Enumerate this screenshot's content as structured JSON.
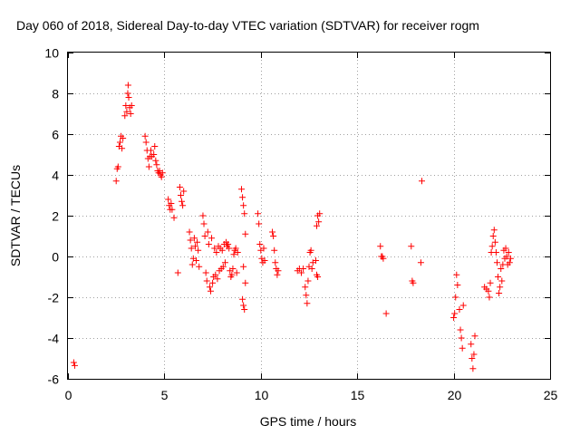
{
  "colors": {
    "marker": "#ff0000",
    "axis": "#000000",
    "grid": "#a0a0a0",
    "background": "#ffffff"
  },
  "chart_data": {
    "type": "scatter",
    "title": "Day 060 of 2018, Sidereal Day-to-day VTEC variation (SDTVAR) for receiver rogm",
    "xlabel": "GPS time / hours",
    "ylabel": "SDTVAR / TECUs",
    "xlim": [
      0,
      25
    ],
    "ylim": [
      -6,
      10
    ],
    "xticks": [
      0,
      5,
      10,
      15,
      20,
      25
    ],
    "yticks": [
      -6,
      -4,
      -2,
      0,
      2,
      4,
      6,
      8,
      10
    ],
    "grid": true,
    "marker": "+",
    "series": [
      {
        "name": "SDTVAR",
        "points": [
          [
            0.3,
            -5.2
          ],
          [
            0.35,
            -5.35
          ],
          [
            2.5,
            3.7
          ],
          [
            2.55,
            4.3
          ],
          [
            2.6,
            4.4
          ],
          [
            2.65,
            5.4
          ],
          [
            2.7,
            5.6
          ],
          [
            2.75,
            5.9
          ],
          [
            2.8,
            5.3
          ],
          [
            2.85,
            5.8
          ],
          [
            2.95,
            6.9
          ],
          [
            3.0,
            7.4
          ],
          [
            3.05,
            7.1
          ],
          [
            3.1,
            8.0
          ],
          [
            3.12,
            8.4
          ],
          [
            3.15,
            7.8
          ],
          [
            3.2,
            7.3
          ],
          [
            3.25,
            7.0
          ],
          [
            3.3,
            7.4
          ],
          [
            4.0,
            5.9
          ],
          [
            4.05,
            5.6
          ],
          [
            4.1,
            5.2
          ],
          [
            4.15,
            4.8
          ],
          [
            4.2,
            4.4
          ],
          [
            4.25,
            4.9
          ],
          [
            4.3,
            5.2
          ],
          [
            4.35,
            4.9
          ],
          [
            4.45,
            5.0
          ],
          [
            4.5,
            5.4
          ],
          [
            4.55,
            4.7
          ],
          [
            4.6,
            4.5
          ],
          [
            4.65,
            4.2
          ],
          [
            4.7,
            4.1
          ],
          [
            4.75,
            4.2
          ],
          [
            4.8,
            4.0
          ],
          [
            4.85,
            3.9
          ],
          [
            4.9,
            4.1
          ],
          [
            5.2,
            2.8
          ],
          [
            5.25,
            2.5
          ],
          [
            5.3,
            2.3
          ],
          [
            5.35,
            2.6
          ],
          [
            5.4,
            2.3
          ],
          [
            5.5,
            1.9
          ],
          [
            5.8,
            3.4
          ],
          [
            5.85,
            3.0
          ],
          [
            5.9,
            2.7
          ],
          [
            5.95,
            2.5
          ],
          [
            6.0,
            3.2
          ],
          [
            5.7,
            -0.8
          ],
          [
            6.3,
            1.2
          ],
          [
            6.35,
            0.8
          ],
          [
            6.4,
            0.4
          ],
          [
            6.45,
            -0.4
          ],
          [
            6.5,
            -0.1
          ],
          [
            6.55,
            0.9
          ],
          [
            6.6,
            0.5
          ],
          [
            6.65,
            -0.2
          ],
          [
            6.7,
            0.7
          ],
          [
            6.75,
            0.3
          ],
          [
            6.8,
            -0.5
          ],
          [
            7.0,
            2.0
          ],
          [
            7.05,
            1.6
          ],
          [
            7.1,
            1.0
          ],
          [
            7.15,
            -0.8
          ],
          [
            7.2,
            -1.2
          ],
          [
            7.25,
            1.2
          ],
          [
            7.3,
            0.6
          ],
          [
            7.35,
            -1.5
          ],
          [
            7.4,
            -1.7
          ],
          [
            7.45,
            0.9
          ],
          [
            7.5,
            -1.3
          ],
          [
            7.55,
            -1.0
          ],
          [
            7.6,
            0.4
          ],
          [
            7.65,
            -0.9
          ],
          [
            7.7,
            0.2
          ],
          [
            7.75,
            -1.1
          ],
          [
            7.8,
            0.5
          ],
          [
            7.85,
            -0.7
          ],
          [
            7.9,
            0.4
          ],
          [
            7.95,
            -0.6
          ],
          [
            8.0,
            0.3
          ],
          [
            8.05,
            -0.5
          ],
          [
            8.1,
            0.6
          ],
          [
            8.15,
            -0.3
          ],
          [
            8.2,
            0.7
          ],
          [
            8.25,
            0.5
          ],
          [
            8.3,
            0.6
          ],
          [
            8.35,
            0.4
          ],
          [
            8.4,
            -0.7
          ],
          [
            8.45,
            -1.0
          ],
          [
            8.5,
            -0.9
          ],
          [
            8.55,
            -0.6
          ],
          [
            8.6,
            0.1
          ],
          [
            8.65,
            0.3
          ],
          [
            8.7,
            0.4
          ],
          [
            8.75,
            -0.8
          ],
          [
            8.8,
            0.2
          ],
          [
            9.0,
            3.3
          ],
          [
            9.05,
            2.9
          ],
          [
            9.1,
            2.5
          ],
          [
            9.15,
            2.1
          ],
          [
            9.2,
            1.1
          ],
          [
            9.05,
            -2.1
          ],
          [
            9.1,
            -2.4
          ],
          [
            9.15,
            -2.6
          ],
          [
            9.2,
            -1.3
          ],
          [
            9.1,
            -0.5
          ],
          [
            9.85,
            2.1
          ],
          [
            9.9,
            1.6
          ],
          [
            9.95,
            0.6
          ],
          [
            10.0,
            0.3
          ],
          [
            10.05,
            -0.1
          ],
          [
            10.1,
            -0.3
          ],
          [
            10.15,
            0.4
          ],
          [
            10.2,
            -0.2
          ],
          [
            10.6,
            1.2
          ],
          [
            10.65,
            1.0
          ],
          [
            10.7,
            0.3
          ],
          [
            10.75,
            -0.3
          ],
          [
            10.8,
            -0.6
          ],
          [
            10.85,
            -0.9
          ],
          [
            10.9,
            -0.7
          ],
          [
            11.9,
            -0.7
          ],
          [
            12.0,
            -0.6
          ],
          [
            12.1,
            -0.8
          ],
          [
            12.2,
            -0.6
          ],
          [
            12.3,
            -1.5
          ],
          [
            12.35,
            -1.9
          ],
          [
            12.4,
            -2.3
          ],
          [
            12.45,
            -1.2
          ],
          [
            12.5,
            -0.5
          ],
          [
            12.55,
            0.2
          ],
          [
            12.6,
            0.3
          ],
          [
            12.65,
            -0.6
          ],
          [
            12.7,
            -0.3
          ],
          [
            12.85,
            -0.2
          ],
          [
            12.9,
            -0.9
          ],
          [
            12.95,
            -1.0
          ],
          [
            12.9,
            1.5
          ],
          [
            12.95,
            2.0
          ],
          [
            13.0,
            1.7
          ],
          [
            13.05,
            2.1
          ],
          [
            16.2,
            0.5
          ],
          [
            16.25,
            0.0
          ],
          [
            16.3,
            0.0
          ],
          [
            16.35,
            -0.1
          ],
          [
            16.5,
            -2.8
          ],
          [
            17.8,
            0.5
          ],
          [
            17.85,
            -1.2
          ],
          [
            17.9,
            -1.3
          ],
          [
            18.3,
            -0.3
          ],
          [
            18.35,
            3.7
          ],
          [
            20.0,
            -3.0
          ],
          [
            20.05,
            -2.8
          ],
          [
            20.1,
            -2.0
          ],
          [
            20.15,
            -0.9
          ],
          [
            20.2,
            -1.4
          ],
          [
            20.3,
            -2.6
          ],
          [
            20.35,
            -3.6
          ],
          [
            20.4,
            -4.0
          ],
          [
            20.45,
            -4.5
          ],
          [
            20.5,
            -2.4
          ],
          [
            20.9,
            -4.3
          ],
          [
            20.95,
            -5.0
          ],
          [
            21.0,
            -5.5
          ],
          [
            21.05,
            -4.8
          ],
          [
            21.1,
            -3.9
          ],
          [
            21.6,
            -1.5
          ],
          [
            21.7,
            -1.6
          ],
          [
            21.8,
            -1.7
          ],
          [
            21.85,
            -2.0
          ],
          [
            21.9,
            -1.3
          ],
          [
            21.95,
            0.2
          ],
          [
            22.0,
            0.5
          ],
          [
            22.05,
            1.0
          ],
          [
            22.1,
            1.3
          ],
          [
            22.15,
            0.7
          ],
          [
            22.2,
            0.2
          ],
          [
            22.25,
            -0.3
          ],
          [
            22.3,
            -1.0
          ],
          [
            22.35,
            -1.8
          ],
          [
            22.4,
            -1.5
          ],
          [
            22.45,
            -0.6
          ],
          [
            22.5,
            -1.2
          ],
          [
            22.55,
            -0.4
          ],
          [
            22.6,
            0.3
          ],
          [
            22.65,
            -0.1
          ],
          [
            22.7,
            0.4
          ],
          [
            22.75,
            0.0
          ],
          [
            22.8,
            -0.4
          ],
          [
            22.85,
            0.2
          ],
          [
            22.9,
            -0.3
          ],
          [
            22.95,
            -0.1
          ]
        ]
      }
    ]
  }
}
